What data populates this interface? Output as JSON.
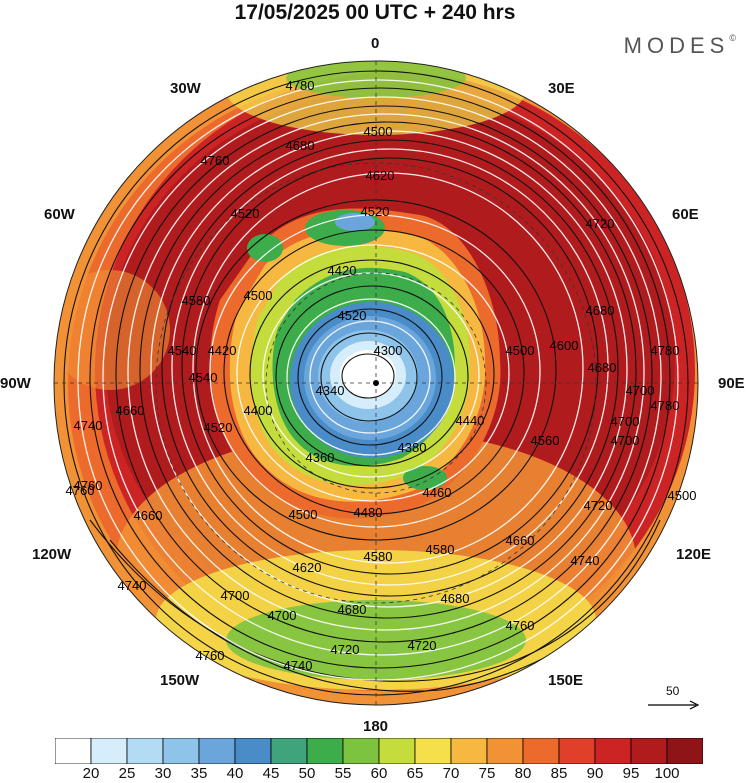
{
  "title": "17/05/2025  00 UTC  + 240 hrs",
  "logo": {
    "text": "MODES",
    "mark": "©"
  },
  "map": {
    "projection": "north-polar-stereographic",
    "longitude_labels": {
      "top": "0",
      "top_right": "30E",
      "right_upper": "60E",
      "right": "90E",
      "right_lower": "120E",
      "bottom_right": "150E",
      "bottom": "180",
      "bottom_left": "150W",
      "left_lower": "120W",
      "left": "90W",
      "left_upper": "60W",
      "top_left": "30W"
    },
    "contour_labels": [
      "4780",
      "4500",
      "4760",
      "4680",
      "4620",
      "4520",
      "4520",
      "4420",
      "4580",
      "4500",
      "4520",
      "4540",
      "4420",
      "4340",
      "4300",
      "4400",
      "4500",
      "4440",
      "4380",
      "4360",
      "4460",
      "4480",
      "4500",
      "4580",
      "4580",
      "4560",
      "4620",
      "4660",
      "4700",
      "4700",
      "4680",
      "4680",
      "4720",
      "4720",
      "4740",
      "4760",
      "4740",
      "4760",
      "4700",
      "4720",
      "4740",
      "4760",
      "4780",
      "4780",
      "4700",
      "4680",
      "4500",
      "4520",
      "4540",
      "4660",
      "4660",
      "4760",
      "4740",
      "4600",
      "4680",
      "4700",
      "4720"
    ],
    "wind_reference": {
      "value": "50"
    }
  },
  "colorbar": {
    "ticks": [
      "20",
      "25",
      "30",
      "35",
      "40",
      "45",
      "50",
      "55",
      "60",
      "65",
      "70",
      "75",
      "80",
      "85",
      "90",
      "95",
      "100"
    ],
    "colors": [
      "#ffffff",
      "#d6eefb",
      "#b2dcf3",
      "#8ec4ea",
      "#6aa6dc",
      "#4a8cc8",
      "#3fa37c",
      "#3dac4a",
      "#7cc440",
      "#c4dc3c",
      "#f4e04a",
      "#f6b840",
      "#f29236",
      "#ec6a2c",
      "#e0402a",
      "#cc2424",
      "#b01c1e",
      "#8e1418"
    ]
  }
}
